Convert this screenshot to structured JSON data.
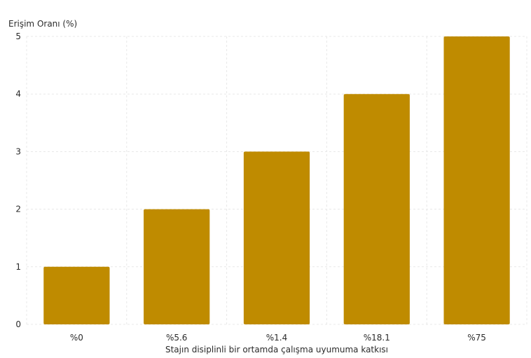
{
  "chart_data": {
    "type": "bar",
    "title": "",
    "xlabel": "Stajın disiplinli bir ortamda çalışma uyumuma katkısı",
    "ylabel": "Erişim Oranı (%)",
    "categories": [
      "%0",
      "%5.6",
      "%1.4",
      "%18.1",
      "%75"
    ],
    "values": [
      1,
      2,
      3,
      4,
      5
    ],
    "ylim": [
      0,
      5
    ],
    "yticks": [
      0,
      1,
      2,
      3,
      4,
      5
    ],
    "grid": true,
    "bar_color": "#BF8B00",
    "grid_color": "#E8E8E8"
  }
}
